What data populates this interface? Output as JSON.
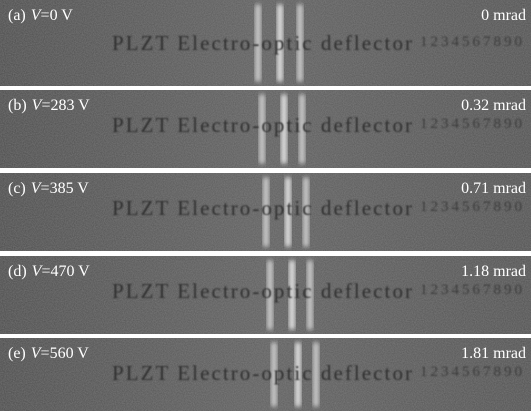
{
  "panels": [
    {
      "tag": "(a)",
      "variable": "V",
      "voltage": "=0 V",
      "angle": "0 mrad",
      "caption": "PLZT Electro-optic deflector",
      "digits": "1234567890"
    },
    {
      "tag": "(b)",
      "variable": "V",
      "voltage": "=283 V",
      "angle": "0.32 mrad",
      "caption": "PLZT Electro-optic deflector",
      "digits": "1234567890"
    },
    {
      "tag": "(c)",
      "variable": "V",
      "voltage": "=385 V",
      "angle": "0.71 mrad",
      "caption": "PLZT Electro-optic deflector",
      "digits": "1234567890"
    },
    {
      "tag": "(d)",
      "variable": "V",
      "voltage": "=470 V",
      "angle": "1.18 mrad",
      "caption": "PLZT Electro-optic deflector",
      "digits": "1234567890"
    },
    {
      "tag": "(e)",
      "variable": "V",
      "voltage": "=560 V",
      "angle": "1.81 mrad",
      "caption": "PLZT Electro-optic deflector",
      "digits": "1234567890"
    }
  ]
}
